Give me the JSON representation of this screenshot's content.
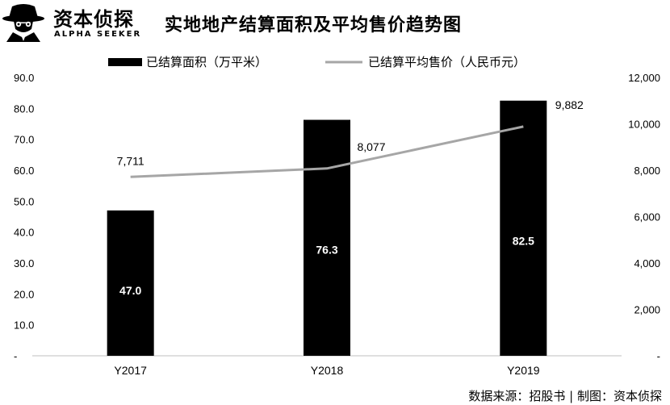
{
  "header": {
    "brand_name": "资本侦探",
    "brand_sub": "ALPHA SEEKER",
    "title": "实地地产结算面积及平均售价趋势图"
  },
  "source": {
    "text": "数据来源：招股书 | 制图：资本侦探"
  },
  "colors": {
    "bar": "#000000",
    "line": "#a6a6a6",
    "bar_label": "#ffffff"
  },
  "chart_data": {
    "type": "bar",
    "categories": [
      "Y2017",
      "Y2018",
      "Y2019"
    ],
    "series": [
      {
        "name": "已结算面积（万平米）",
        "type": "bar",
        "axis": "left",
        "values": [
          47.0,
          76.3,
          82.5
        ],
        "labels": [
          "47.0",
          "76.3",
          "82.5"
        ]
      },
      {
        "name": "已结算平均售价（人民币元）",
        "type": "line",
        "axis": "right",
        "values": [
          7711,
          8077,
          9882
        ],
        "labels": [
          "7,711",
          "8,077",
          "9,882"
        ]
      }
    ],
    "y_left": {
      "min": 0,
      "max": 90,
      "ticks": [
        0,
        10,
        20,
        30,
        40,
        50,
        60,
        70,
        80,
        90
      ],
      "tick_labels": [
        "-",
        "10.0",
        "20.0",
        "30.0",
        "40.0",
        "50.0",
        "60.0",
        "70.0",
        "80.0",
        "90.0"
      ]
    },
    "y_right": {
      "min": 0,
      "max": 12000,
      "ticks": [
        0,
        2000,
        4000,
        6000,
        8000,
        10000,
        12000
      ],
      "tick_labels": [
        "-",
        "2,000",
        "4,000",
        "6,000",
        "8,000",
        "10,000",
        "12,000"
      ]
    },
    "legend_position": "top",
    "grid": false
  }
}
